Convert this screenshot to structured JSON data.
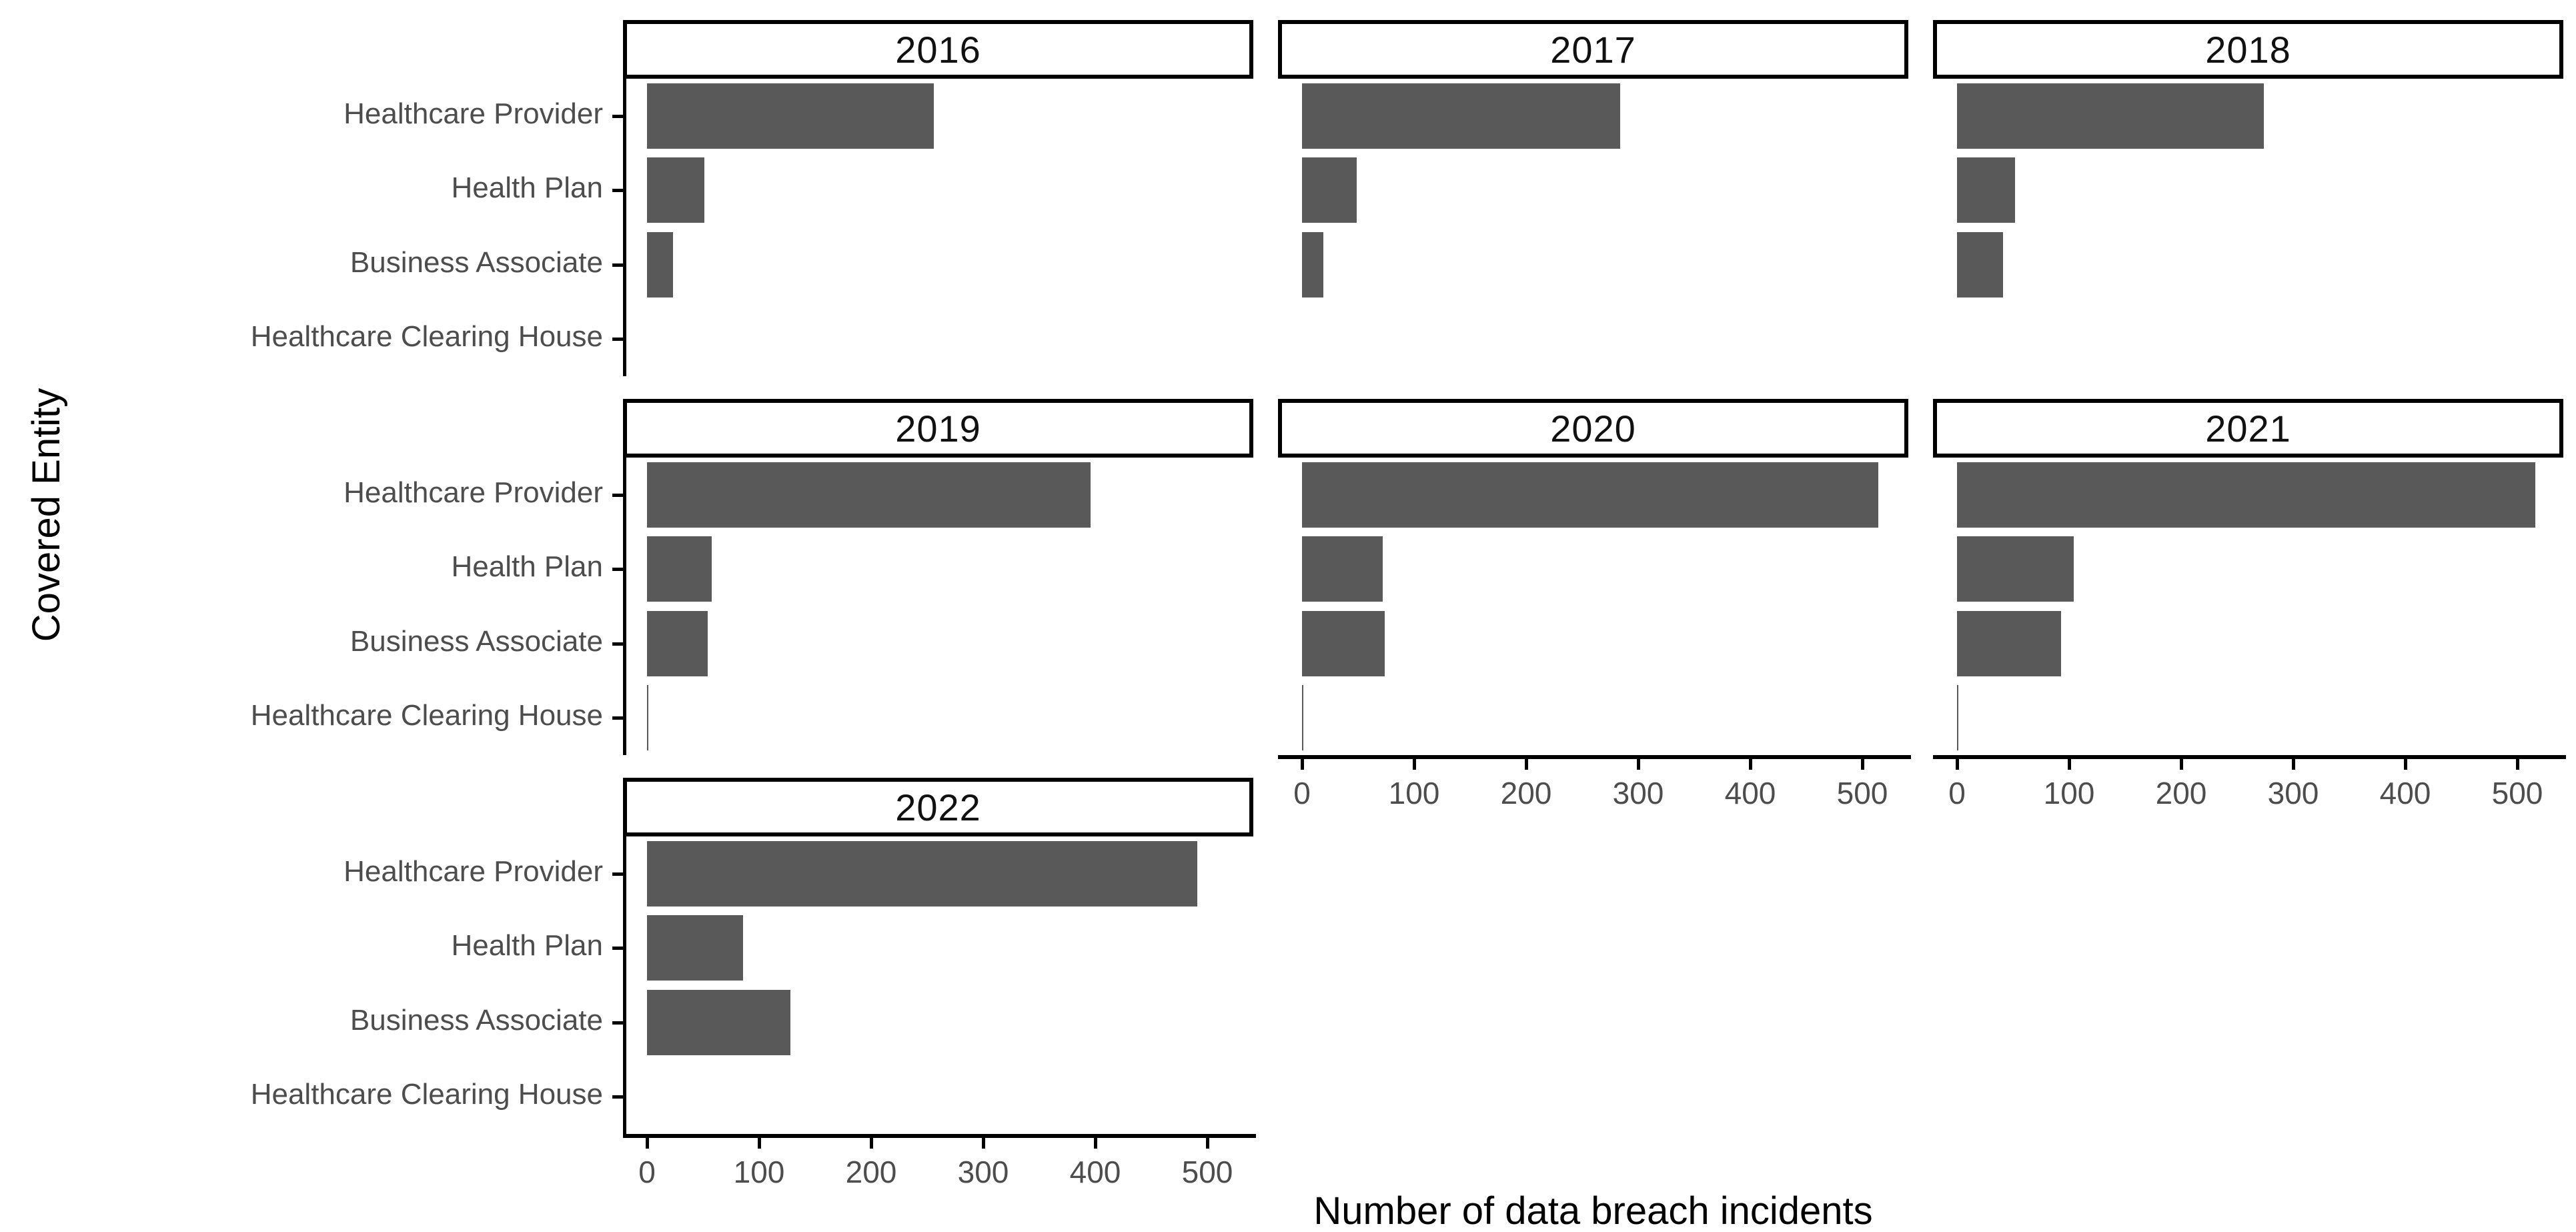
{
  "chart_data": {
    "type": "bar",
    "orientation": "horizontal",
    "faceted_by": "Year",
    "xlabel": "Number of data breach incidents",
    "ylabel": "Covered Entity",
    "categories": [
      "Healthcare Provider",
      "Health Plan",
      "Business Associate",
      "Healthcare Clearing House"
    ],
    "x_ticks": [
      0,
      100,
      200,
      300,
      400,
      500
    ],
    "xlim": [
      0,
      540
    ],
    "grid": false,
    "legend": "none",
    "facets": [
      {
        "label": "2016",
        "values": [
          256,
          51,
          23,
          0
        ]
      },
      {
        "label": "2017",
        "values": [
          284,
          49,
          19,
          0
        ]
      },
      {
        "label": "2018",
        "values": [
          274,
          52,
          41,
          0
        ]
      },
      {
        "label": "2019",
        "values": [
          396,
          58,
          54,
          1
        ]
      },
      {
        "label": "2020",
        "values": [
          514,
          72,
          74,
          1
        ]
      },
      {
        "label": "2021",
        "values": [
          516,
          104,
          93,
          1
        ]
      },
      {
        "label": "2022",
        "values": [
          491,
          86,
          128,
          0
        ]
      }
    ],
    "colors": {
      "bar": "#595959",
      "axis": "#000000",
      "tick_label": "#4d4d4d",
      "category_label": "#4d4d4d",
      "strip_border": "#000000",
      "strip_text": "#111111",
      "background": "#ffffff"
    }
  }
}
